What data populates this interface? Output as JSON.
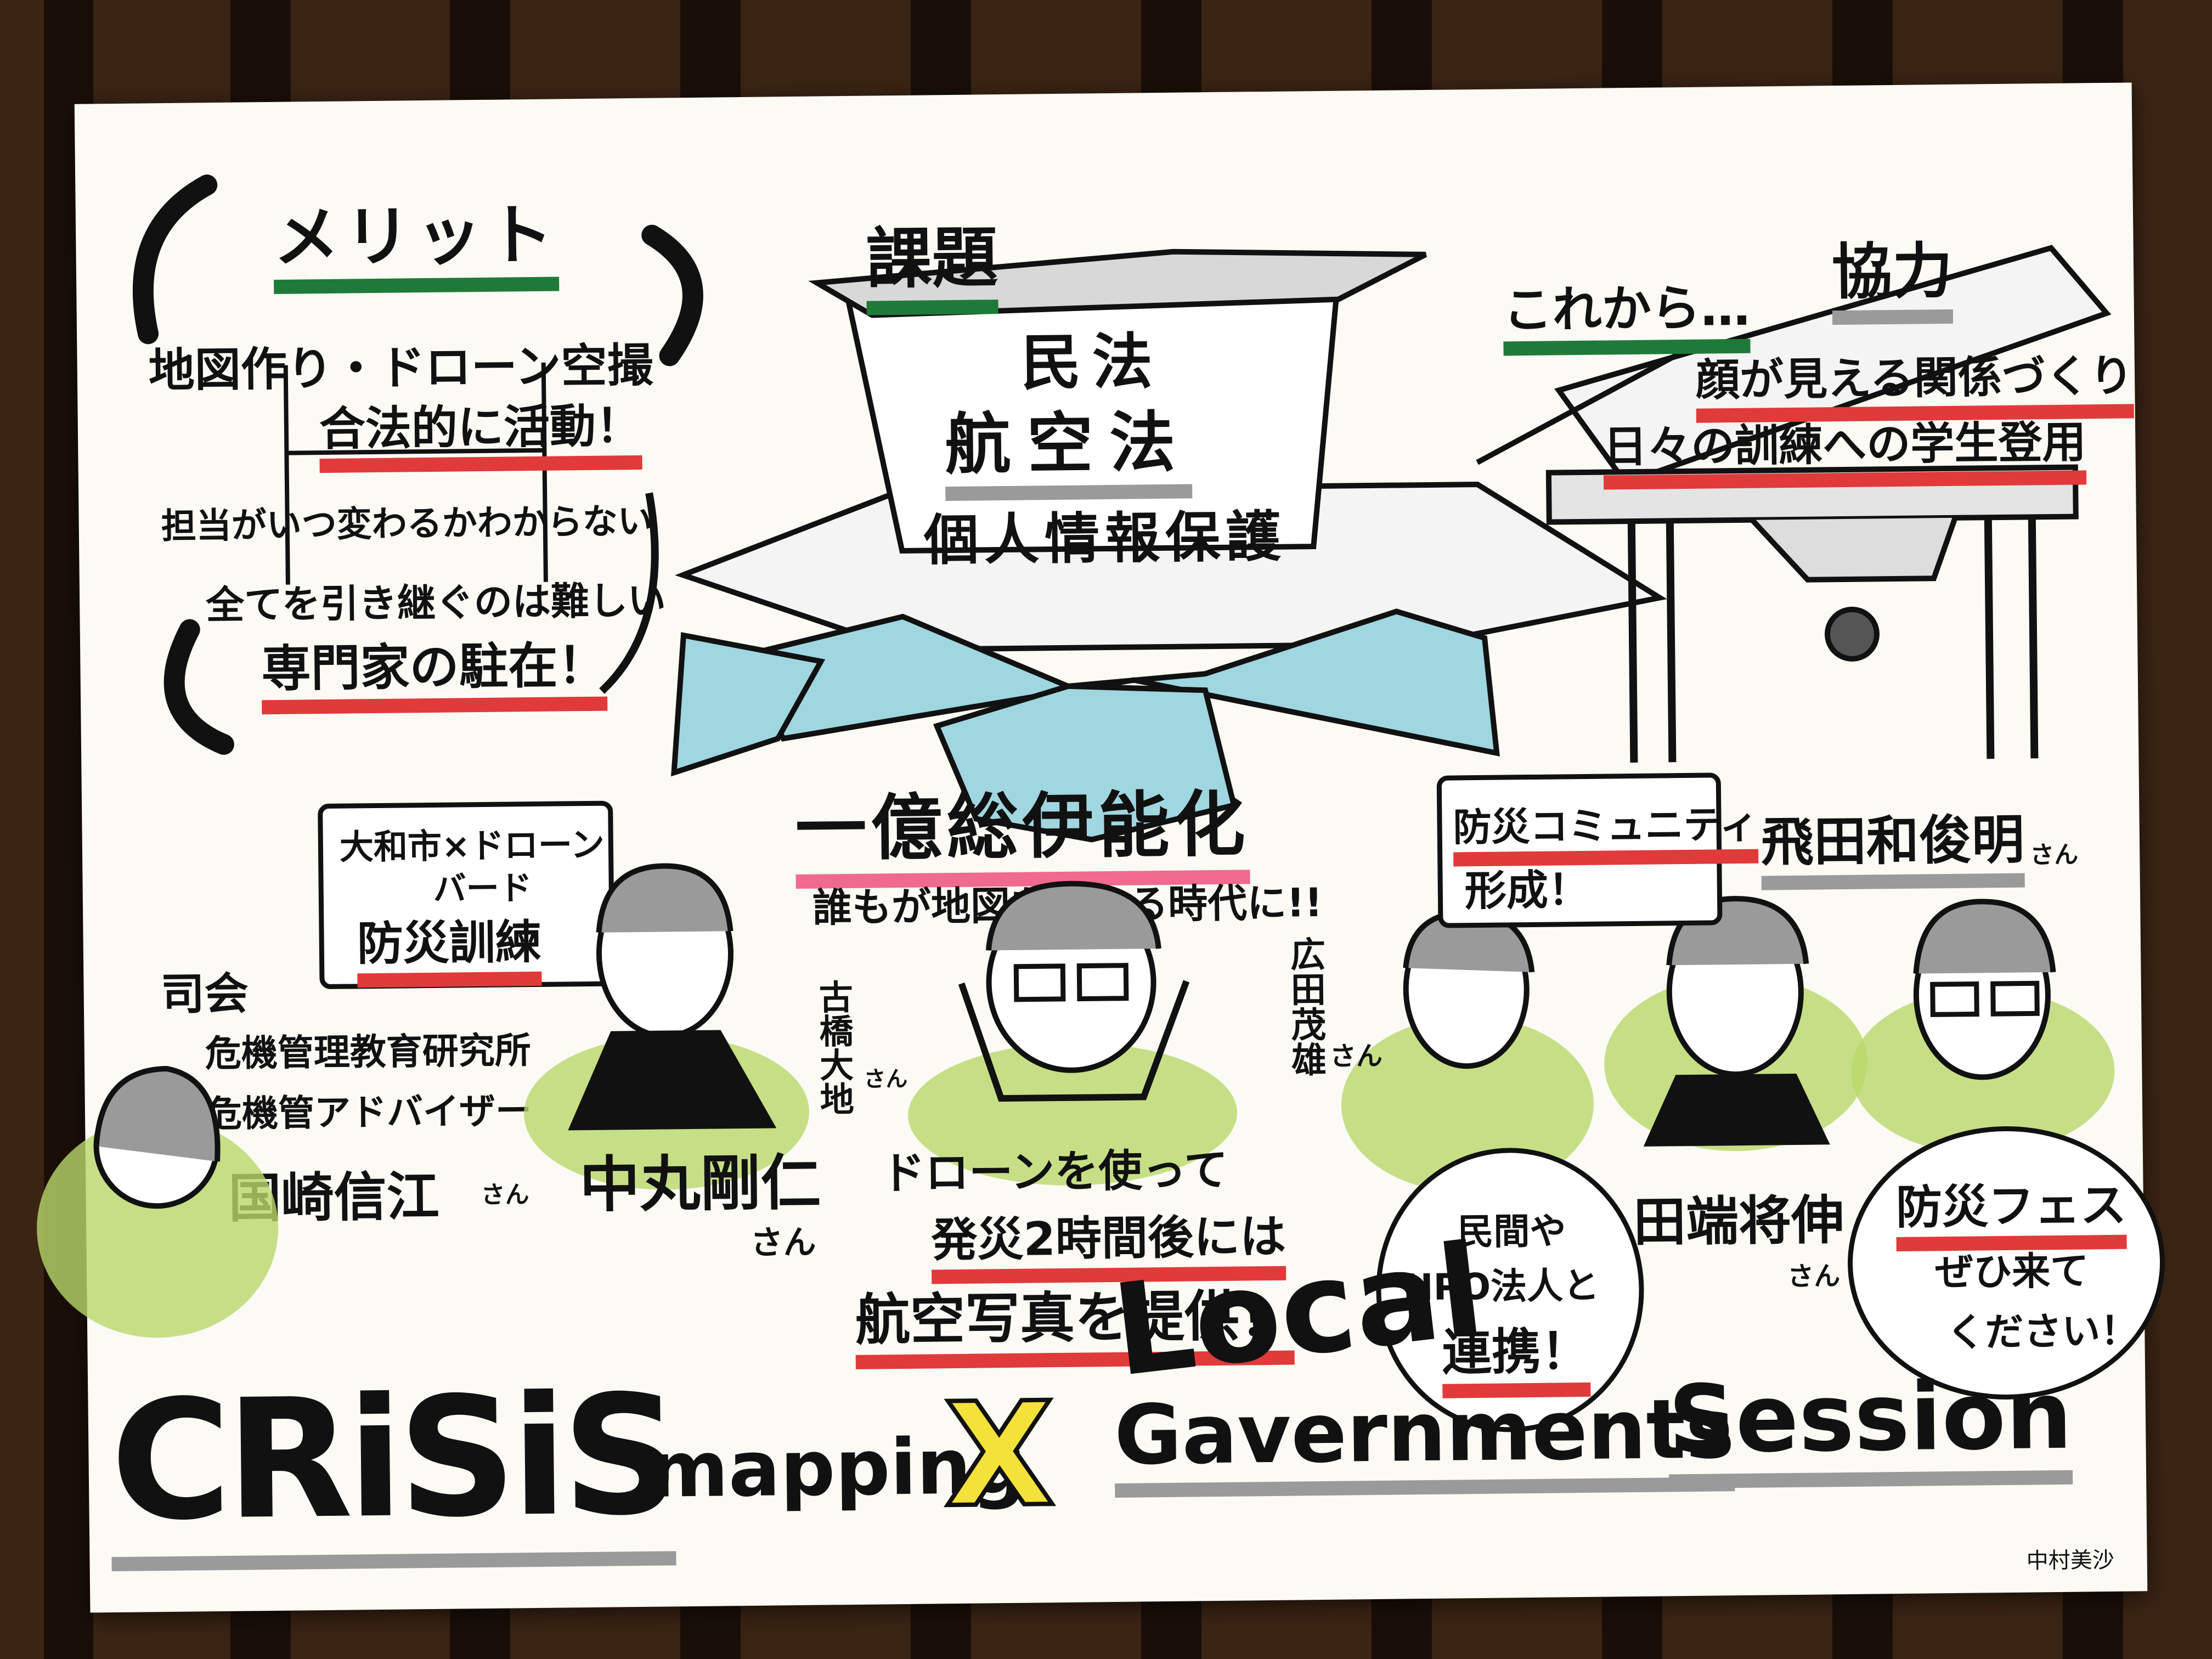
{
  "poster": {
    "merit": {
      "heading": "メリット",
      "item1_line1": "地図作り・ドローン空撮",
      "item1_line2": "合法的に活動！",
      "item2_line1": "担当がいつ変わるかわからない",
      "item2_line2": "全てを引き継ぐのは難しい",
      "item2_line3": "専門家の駐在！"
    },
    "issue": {
      "heading": "課題",
      "line1": "民法",
      "line2": "航空法",
      "line3": "個人情報保護"
    },
    "future": {
      "heading": "これから…",
      "heading2": "協力",
      "line1": "顔が見える関係づくり",
      "line2": "日々の訓練への学生登用"
    },
    "center": {
      "slogan": "一億総伊能化",
      "sub": "誰もが地図を作れる時代に!!"
    },
    "moderator": {
      "bubble_line1": "大和市×ドローン",
      "bubble_line2": "バード",
      "bubble_line3": "防災訓練",
      "label": "司会",
      "org1": "危機管理教育研究所",
      "org2": "危機管アドバイザー",
      "name": "国崎信江",
      "honorific": "さん"
    },
    "speaker_nakamaru": {
      "name": "中丸剛仁",
      "honorific": "さん"
    },
    "speaker_furuhashi": {
      "name": "古橋大地",
      "honorific": "さん"
    },
    "speaker_hirota": {
      "name": "広田茂雄",
      "honorific": "さん"
    },
    "drone_quote": {
      "line1": "ドローンを使って",
      "line2": "発災2時間後には",
      "line3": "航空写真を提供！"
    },
    "community": {
      "line1": "防災コミュニティ",
      "line2": "形成！"
    },
    "npo": {
      "line1": "民間や",
      "line2": "NPO法人と",
      "line3": "連携！"
    },
    "speaker_tabata": {
      "name": "田端将伸",
      "honorific": "さん"
    },
    "speaker_hida": {
      "name": "飛田和俊明",
      "honorific": "さん"
    },
    "fest": {
      "line1": "防災フェス",
      "line2": "ぜひ来て",
      "line3": "ください！"
    },
    "title": {
      "crisis": "CRiSiS",
      "mapping": "mapping",
      "x": "X",
      "local": "Local",
      "governments": "Gavernments",
      "session": "Session"
    },
    "signature": "中村美沙"
  },
  "colors": {
    "red": "#e03a3a",
    "green": "#1f7a3a",
    "pink": "#ef6a8e",
    "lightblue": "#9fd6e0",
    "lime": "#b9d86a",
    "yellow": "#f4e13a",
    "gray": "#9a9a9a"
  }
}
